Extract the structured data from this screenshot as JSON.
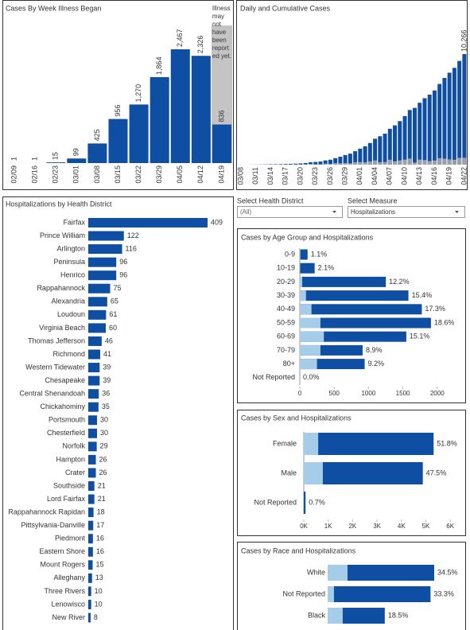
{
  "filters": [
    {
      "label": "Select Health District",
      "value": "(All)"
    },
    {
      "label": "Select Measure",
      "value": "Hospitalizations"
    }
  ],
  "chart_data": [
    {
      "type": "bar",
      "title": "Cases By Week Illness Began",
      "categories": [
        "02/09",
        "02/16",
        "02/23",
        "03/01",
        "03/08",
        "03/15",
        "03/22",
        "03/29",
        "04/05",
        "04/12",
        "04/19"
      ],
      "values": [
        1,
        1,
        15,
        99,
        425,
        956,
        1270,
        1864,
        2467,
        2326,
        836
      ],
      "value_labels": [
        "1",
        "1",
        "15",
        "99",
        "425",
        "956",
        "1,270",
        "1,864",
        "2,467",
        "2,326",
        "836"
      ],
      "color": "#0f4fa3",
      "annotation": "Illness may not have been reported yet.",
      "annotation_color": "#c4c4c4"
    },
    {
      "type": "bar",
      "title": "Daily and Cumulative Cases",
      "categories": [
        "03/08",
        null,
        null,
        "03/11",
        null,
        null,
        "03/14",
        null,
        null,
        "03/17",
        null,
        null,
        "03/20",
        null,
        null,
        "03/23",
        null,
        null,
        "03/26",
        null,
        null,
        "03/29",
        null,
        null,
        "04/01",
        null,
        null,
        "04/04",
        null,
        null,
        "04/07",
        null,
        null,
        "04/10",
        null,
        null,
        "04/13",
        null,
        null,
        "04/16",
        null,
        null,
        "04/19",
        null,
        null,
        "04/22"
      ],
      "series": [
        {
          "color": "#0f4fa3",
          "values": [
            2,
            3,
            8,
            10,
            17,
            30,
            41,
            45,
            51,
            67,
            77,
            94,
            114,
            152,
            219,
            254,
            290,
            391,
            460,
            604,
            739,
            890,
            1020,
            1250,
            1484,
            1706,
            2012,
            2407,
            2637,
            2878,
            3333,
            3645,
            4042,
            4509,
            5077,
            5274,
            5747,
            6171,
            6500,
            6889,
            7491,
            8053,
            8537,
            8990,
            9630,
            10266
          ],
          "value_labels": [
            null,
            null,
            null,
            null,
            null,
            null,
            null,
            null,
            null,
            null,
            null,
            null,
            null,
            null,
            null,
            null,
            null,
            null,
            null,
            null,
            null,
            null,
            null,
            null,
            null,
            null,
            null,
            null,
            null,
            null,
            null,
            null,
            null,
            null,
            null,
            null,
            null,
            null,
            null,
            null,
            null,
            null,
            null,
            null,
            null,
            "10,266"
          ]
        },
        {
          "color": "#9aa0a8",
          "values": [
            2,
            1,
            5,
            2,
            7,
            13,
            11,
            4,
            6,
            16,
            10,
            17,
            20,
            38,
            67,
            35,
            36,
            101,
            69,
            144,
            135,
            151,
            130,
            230,
            234,
            222,
            306,
            395,
            230,
            241,
            455,
            312,
            397,
            467,
            568,
            197,
            473,
            424,
            329,
            389,
            602,
            562,
            484,
            453,
            640,
            636
          ]
        }
      ]
    },
    {
      "type": "hbar",
      "title": "Hospitalizations by Health District",
      "categories": [
        "Fairfax",
        "Prince William",
        "Arlington",
        "Peninsula",
        "Henrico",
        "Rappahannock",
        "Alexandria",
        "Loudoun",
        "Virginia Beach",
        "Thomas Jefferson",
        "Richmond",
        "Western Tidewater",
        "Chesapeake",
        "Central Shenandoah",
        "Chickahominy",
        "Portsmouth",
        "Chesterfield",
        "Norfolk",
        "Hampton",
        "Crater",
        "Southside",
        "Lord Fairfax",
        "Rappahannock Rapidan",
        "Pittsylvania-Danville",
        "Piedmont",
        "Eastern Shore",
        "Mount Rogers",
        "Alleghany",
        "Three Rivers",
        "Lenowisco",
        "New River"
      ],
      "values": [
        409,
        122,
        116,
        96,
        96,
        75,
        65,
        61,
        60,
        46,
        41,
        39,
        39,
        36,
        35,
        30,
        30,
        29,
        26,
        26,
        21,
        21,
        18,
        17,
        16,
        16,
        15,
        13,
        10,
        10,
        8
      ],
      "color": "#0f4fa3"
    },
    {
      "type": "hbar",
      "title": "Cases by Age Group and Hospitalizations",
      "categories": [
        "0-9",
        "10-19",
        "20-29",
        "30-39",
        "40-49",
        "50-59",
        "60-69",
        "70-79",
        "80+",
        "Not Reported"
      ],
      "series": [
        {
          "color": "#0f4fa3",
          "values": [
            113,
            216,
            1252,
            1581,
            1776,
            1909,
            1550,
            914,
            944,
            0
          ]
        },
        {
          "color": "#a5cce8",
          "values": [
            8,
            5,
            35,
            90,
            170,
            300,
            350,
            300,
            250,
            0
          ]
        }
      ],
      "share_labels": [
        "1.1%",
        "2.1%",
        "12.2%",
        "15.4%",
        "17.3%",
        "18.6%",
        "15.1%",
        "8.9%",
        "9.2%",
        "0.0%"
      ],
      "xlim": [
        0,
        2350
      ],
      "xticks": [
        0,
        500,
        1000,
        1500,
        2000
      ]
    },
    {
      "type": "hbar",
      "title": "Cases by Sex and Hospitalizations",
      "categories": [
        "Female",
        "Male",
        "Not Reported"
      ],
      "series": [
        {
          "color": "#0f4fa3",
          "values": [
            5318,
            4876,
            72
          ]
        },
        {
          "color": "#a5cce8",
          "values": [
            590,
            780,
            0
          ]
        }
      ],
      "share_labels": [
        "51.8%",
        "47.5%",
        "0.7%"
      ],
      "xlim": [
        0,
        6450
      ],
      "xticks": [
        {
          "value": 0,
          "label": "0K"
        },
        {
          "value": 1000,
          "label": "1K"
        },
        {
          "value": 2000,
          "label": "2K"
        },
        {
          "value": 3000,
          "label": "3K"
        },
        {
          "value": 4000,
          "label": "4K"
        },
        {
          "value": 5000,
          "label": "5K"
        },
        {
          "value": 6000,
          "label": "6K"
        }
      ]
    },
    {
      "type": "hbar",
      "title": "Cases by Race and Hospitalizations",
      "categories": [
        "White",
        "Not Reported",
        "Black"
      ],
      "series": [
        {
          "color": "#0f4fa3",
          "values": [
            3542,
            3419,
            1899
          ]
        },
        {
          "color": "#a5cce8",
          "values": [
            660,
            210,
            500
          ]
        }
      ],
      "share_labels": [
        "34.5%",
        "33.3%",
        "18.5%"
      ]
    }
  ]
}
